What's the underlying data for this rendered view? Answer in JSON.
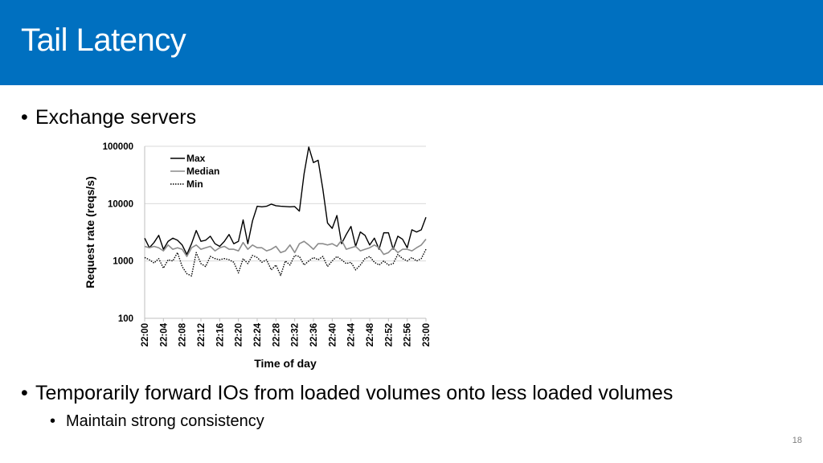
{
  "slide": {
    "title": "Tail Latency",
    "bullet1": "Exchange servers",
    "bullet2": "Temporarily forward IOs from loaded volumes onto less loaded volumes",
    "sub_bullet1": "Maintain strong consistency",
    "slide_number": "18",
    "bullet_char": "•"
  },
  "colors": {
    "header": "#0070c0",
    "max": "#000000",
    "median": "#8c8c8c",
    "min": "#000000"
  },
  "chart_data": {
    "type": "line",
    "title": "",
    "xlabel": "Time of day",
    "ylabel": "Request rate (reqs/s)",
    "yscale": "log",
    "ylim": [
      100,
      100000
    ],
    "yticks": [
      "100",
      "1000",
      "10000",
      "100000"
    ],
    "xlim": [
      "22:00",
      "23:00"
    ],
    "xticks": [
      "22:00",
      "22:04",
      "22:08",
      "22:12",
      "22:16",
      "22:20",
      "22:24",
      "22:28",
      "22:32",
      "22:36",
      "22:40",
      "22:44",
      "22:48",
      "22:52",
      "22:56",
      "23:00"
    ],
    "legend": "top-left",
    "series": [
      {
        "name": "Max",
        "style": "solid",
        "x": [
          "22:00",
          "22:01",
          "22:02",
          "22:03",
          "22:04",
          "22:05",
          "22:06",
          "22:07",
          "22:08",
          "22:09",
          "22:10",
          "22:11",
          "22:12",
          "22:13",
          "22:14",
          "22:15",
          "22:16",
          "22:17",
          "22:18",
          "22:19",
          "22:20",
          "22:21",
          "22:22",
          "22:23",
          "22:24",
          "22:25",
          "22:26",
          "22:27",
          "22:28",
          "22:29",
          "22:30",
          "22:31",
          "22:32",
          "22:33",
          "22:34",
          "22:35",
          "22:36",
          "22:37",
          "22:38",
          "22:39",
          "22:40",
          "22:41",
          "22:42",
          "22:43",
          "22:44",
          "22:45",
          "22:46",
          "22:47",
          "22:48",
          "22:49",
          "22:50",
          "22:51",
          "22:52",
          "22:53",
          "22:54",
          "22:55",
          "22:56",
          "22:57",
          "22:58",
          "22:59",
          "23:00"
        ],
        "y": [
          2500,
          1700,
          2100,
          2800,
          1600,
          2200,
          2500,
          2300,
          1900,
          1300,
          2000,
          3400,
          2200,
          2300,
          2700,
          2000,
          1800,
          2200,
          2900,
          2000,
          2200,
          5200,
          2000,
          5000,
          9000,
          8800,
          9000,
          9800,
          9200,
          9000,
          8900,
          8800,
          8900,
          7400,
          33000,
          97000,
          52000,
          57000,
          18000,
          4600,
          3700,
          6200,
          2000,
          2900,
          4000,
          1800,
          3200,
          2800,
          1900,
          2500,
          1600,
          3100,
          3100,
          1600,
          2700,
          2400,
          1700,
          3500,
          3200,
          3500,
          5800
        ]
      },
      {
        "name": "Median",
        "style": "solid",
        "x": [
          "22:00",
          "22:01",
          "22:02",
          "22:03",
          "22:04",
          "22:05",
          "22:06",
          "22:07",
          "22:08",
          "22:09",
          "22:10",
          "22:11",
          "22:12",
          "22:13",
          "22:14",
          "22:15",
          "22:16",
          "22:17",
          "22:18",
          "22:19",
          "22:20",
          "22:21",
          "22:22",
          "22:23",
          "22:24",
          "22:25",
          "22:26",
          "22:27",
          "22:28",
          "22:29",
          "22:30",
          "22:31",
          "22:32",
          "22:33",
          "22:34",
          "22:35",
          "22:36",
          "22:37",
          "22:38",
          "22:39",
          "22:40",
          "22:41",
          "22:42",
          "22:43",
          "22:44",
          "22:45",
          "22:46",
          "22:47",
          "22:48",
          "22:49",
          "22:50",
          "22:51",
          "22:52",
          "22:53",
          "22:54",
          "22:55",
          "22:56",
          "22:57",
          "22:58",
          "22:59",
          "23:00"
        ],
        "y": [
          1800,
          1700,
          1800,
          1700,
          1500,
          1900,
          1600,
          1700,
          1600,
          1200,
          1700,
          1900,
          1600,
          1700,
          1800,
          1500,
          1700,
          1800,
          1600,
          1600,
          1500,
          2100,
          1600,
          1900,
          1700,
          1700,
          1500,
          1600,
          1800,
          1400,
          1500,
          1900,
          1400,
          2000,
          2200,
          1900,
          1600,
          2000,
          2000,
          1900,
          2000,
          1800,
          2300,
          1600,
          1700,
          1800,
          1500,
          1600,
          1700,
          1900,
          1700,
          1300,
          1400,
          1700,
          1400,
          1600,
          1600,
          1500,
          1700,
          1900,
          2400
        ]
      },
      {
        "name": "Min",
        "style": "dotted",
        "x": [
          "22:00",
          "22:01",
          "22:02",
          "22:03",
          "22:04",
          "22:05",
          "22:06",
          "22:07",
          "22:08",
          "22:09",
          "22:10",
          "22:11",
          "22:12",
          "22:13",
          "22:14",
          "22:15",
          "22:16",
          "22:17",
          "22:18",
          "22:19",
          "22:20",
          "22:21",
          "22:22",
          "22:23",
          "22:24",
          "22:25",
          "22:26",
          "22:27",
          "22:28",
          "22:29",
          "22:30",
          "22:31",
          "22:32",
          "22:33",
          "22:34",
          "22:35",
          "22:36",
          "22:37",
          "22:38",
          "22:39",
          "22:40",
          "22:41",
          "22:42",
          "22:43",
          "22:44",
          "22:45",
          "22:46",
          "22:47",
          "22:48",
          "22:49",
          "22:50",
          "22:51",
          "22:52",
          "22:53",
          "22:54",
          "22:55",
          "22:56",
          "22:57",
          "22:58",
          "22:59",
          "23:00"
        ],
        "y": [
          1150,
          1050,
          920,
          1100,
          750,
          1050,
          1000,
          1400,
          800,
          600,
          550,
          1400,
          900,
          800,
          1200,
          1100,
          1050,
          1100,
          1050,
          950,
          620,
          1100,
          900,
          1250,
          1150,
          950,
          1050,
          700,
          850,
          560,
          1000,
          850,
          1250,
          1200,
          850,
          1000,
          1150,
          1050,
          1200,
          800,
          1000,
          1200,
          1050,
          900,
          950,
          700,
          850,
          1100,
          1200,
          950,
          850,
          1000,
          850,
          900,
          1300,
          1100,
          1000,
          1150,
          1000,
          1100,
          1600
        ]
      }
    ]
  }
}
